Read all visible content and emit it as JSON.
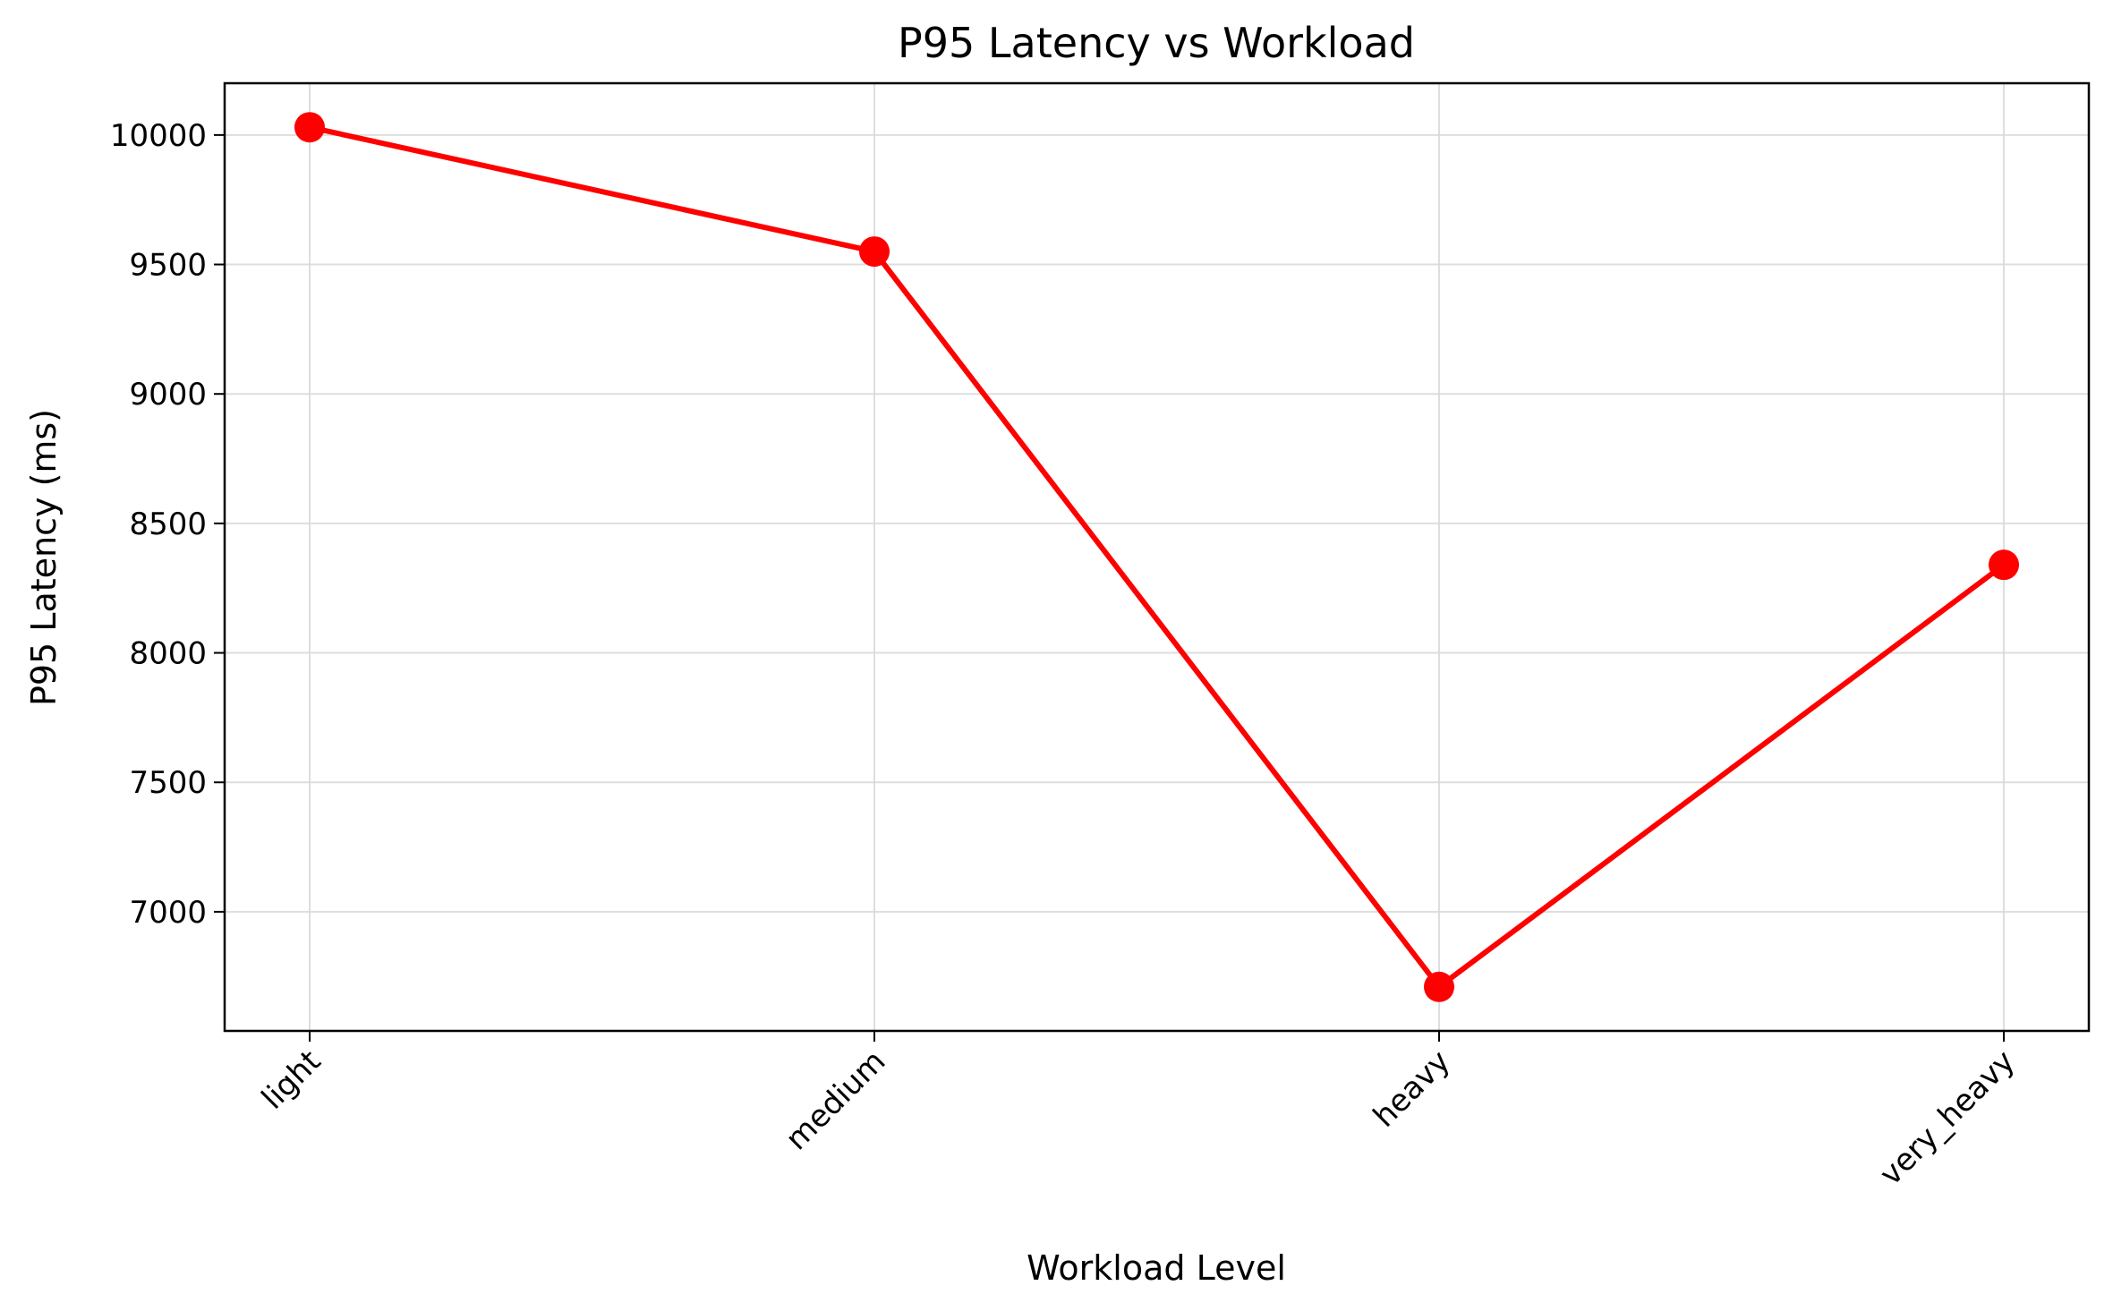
{
  "chart_data": {
    "type": "line",
    "title": "P95 Latency vs Workload",
    "xlabel": "Workload Level",
    "ylabel": "P95 Latency (ms)",
    "categories": [
      "light",
      "medium",
      "heavy",
      "very_heavy"
    ],
    "series": [
      {
        "values": [
          10030,
          9550,
          6710,
          8340
        ]
      }
    ],
    "ylim": [
      6540,
      10200
    ],
    "yticks": [
      7000,
      7500,
      8000,
      8500,
      9000,
      9500,
      10000
    ],
    "grid": true,
    "legend": "none",
    "line_color": "#ff0000",
    "marker_color": "#ff0000"
  }
}
